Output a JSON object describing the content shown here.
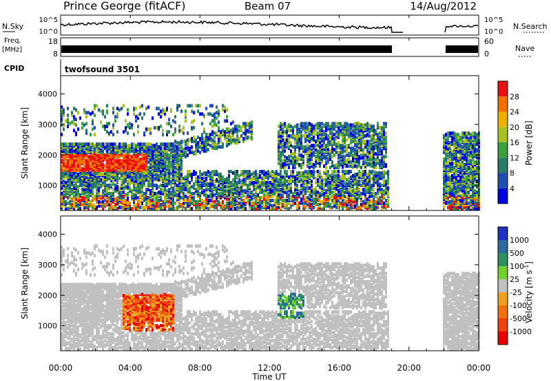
{
  "header": {
    "station": "Prince George (fitACF)",
    "beam": "Beam 07",
    "date": "14/Aug/2012"
  },
  "nsky_panel": {
    "left_label": "N.Sky",
    "right_label": "N.Search",
    "ticks": [
      "10^5",
      "10^0"
    ],
    "right_ticks": [
      "10^5",
      "10^0"
    ]
  },
  "freq_panel": {
    "left_label_1": "Freq.",
    "left_label_2": "[MHz]",
    "left_ticks": [
      "18",
      "8"
    ],
    "right_label": "Nave",
    "right_ticks": [
      "60",
      "0"
    ]
  },
  "cpid": {
    "label": "CPID",
    "value": "twofsound 3501"
  },
  "chart_data": [
    {
      "type": "heatmap",
      "name": "power",
      "ylabel": "Slant Range [km]",
      "y_ticks": [
        "1000",
        "2000",
        "3000",
        "4000"
      ],
      "y_range_km": [
        180,
        4600
      ],
      "colorbar_label": "Power [dB]",
      "colorbar_ticks": [
        "4",
        "8",
        "12",
        "16",
        "20",
        "24",
        "28"
      ],
      "colorbar_colors": [
        "#0000e0",
        "#1f4fb0",
        "#2a7a68",
        "#3aa040",
        "#a8c020",
        "#f0b000",
        "#f07000",
        "#e81010"
      ],
      "color_range": [
        0,
        32
      ]
    },
    {
      "type": "heatmap",
      "name": "velocity",
      "ylabel": "Slant Range [km]",
      "y_ticks": [
        "1000",
        "2000",
        "3000",
        "4000"
      ],
      "y_range_km": [
        180,
        4600
      ],
      "colorbar_label": "Velocity [m s",
      "colorbar_label_sup": "-1",
      "colorbar_label_end": "]",
      "colorbar_ticks": [
        "1000",
        "500",
        "100",
        "25",
        "-25",
        "-100",
        "-500",
        "-1000"
      ],
      "colorbar_colors": [
        "#2030c0",
        "#2a6aa0",
        "#2e9060",
        "#70d030",
        "#c0c0c0",
        "#f0a020",
        "#f07010",
        "#f04010",
        "#e80000"
      ]
    }
  ],
  "x_axis": {
    "label": "Time UT",
    "ticks": [
      "00:00",
      "04:00",
      "08:00",
      "12:00",
      "16:00",
      "20:00",
      "00:00"
    ],
    "range_hours": [
      0,
      24
    ]
  }
}
